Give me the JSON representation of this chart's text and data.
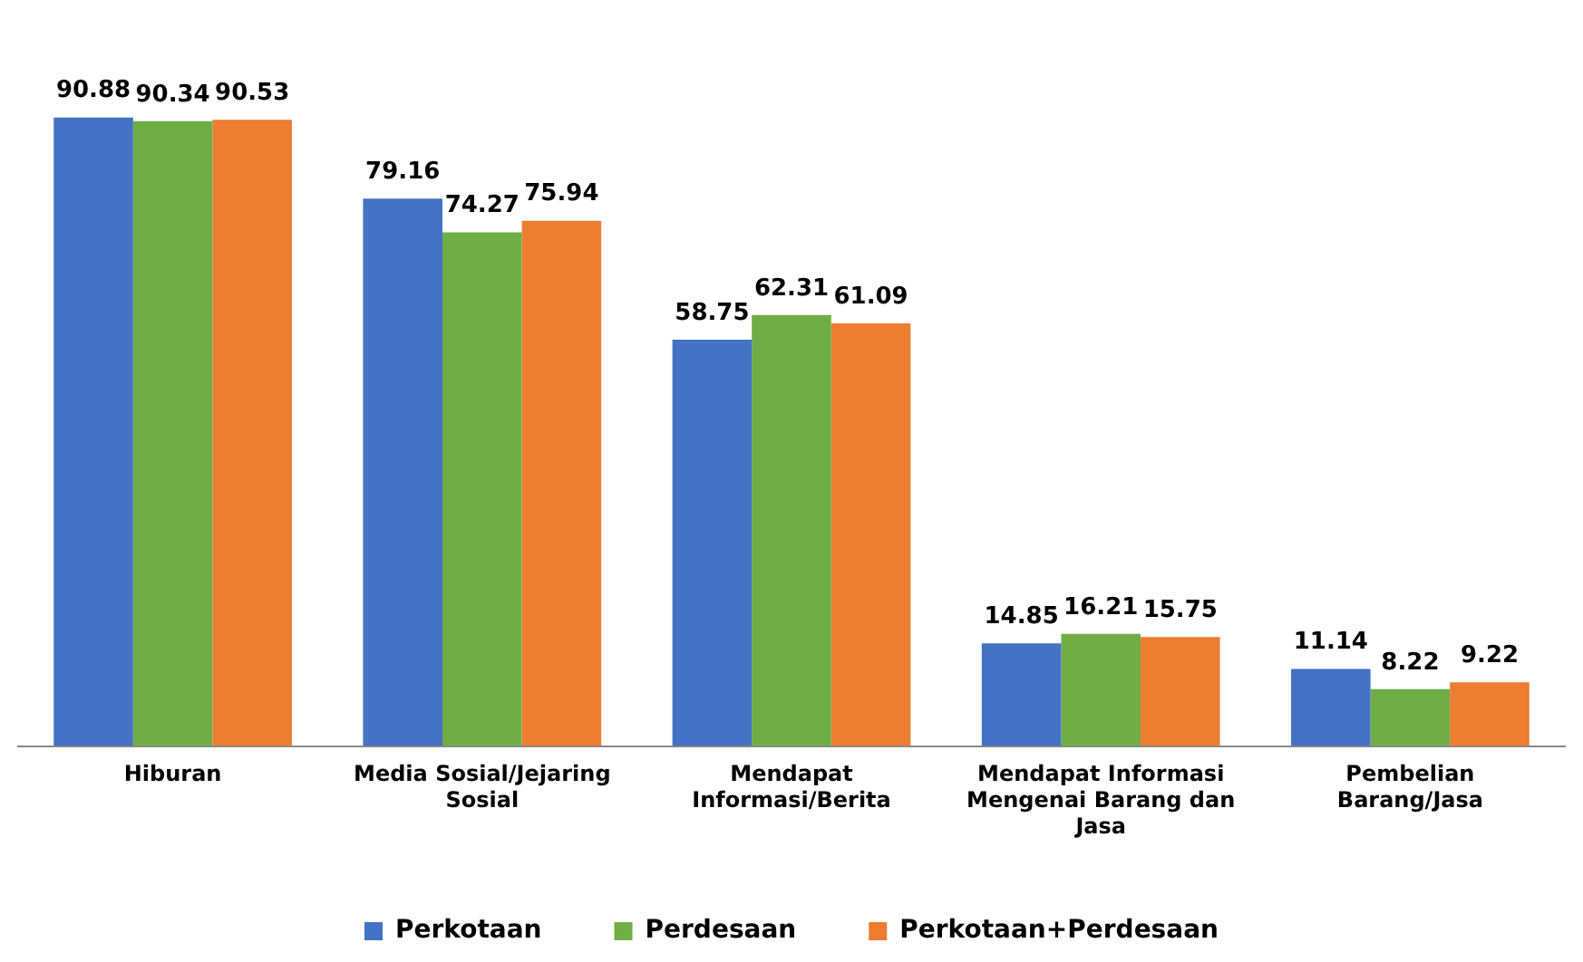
{
  "chart_data": {
    "type": "bar",
    "categories": [
      "Hiburan",
      "Media Sosial/Jejaring Sosial",
      "Mendapat Informasi/Berita",
      "Mendapat Informasi Mengenai Barang dan Jasa",
      "Pembelian Barang/Jasa"
    ],
    "series": [
      {
        "name": "Perkotaan",
        "color": "#4472c4",
        "values": [
          90.88,
          79.16,
          58.75,
          14.85,
          11.14
        ]
      },
      {
        "name": "Perdesaan",
        "color": "#70ad47",
        "values": [
          90.34,
          74.27,
          62.31,
          16.21,
          8.22
        ]
      },
      {
        "name": "Perkotaan+Perdesaan",
        "color": "#ed7d31",
        "values": [
          90.53,
          75.94,
          61.09,
          15.75,
          9.22
        ]
      }
    ],
    "data_labels": true,
    "tick_labels": "x",
    "grid": false,
    "legend": "bottom"
  }
}
